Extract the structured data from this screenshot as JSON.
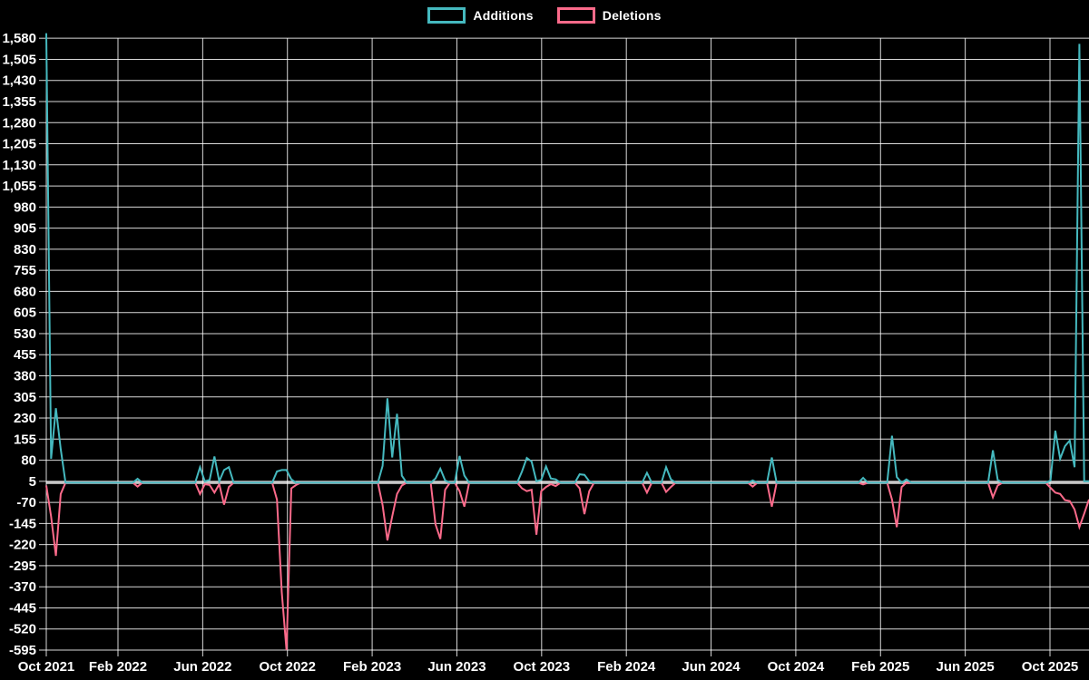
{
  "chart_data": {
    "type": "line",
    "title": "",
    "background_color": "#000000",
    "grid": "on",
    "grid_color": "rgba(255,255,255,0.85)",
    "zero_line_color": "rgba(255,255,255,0.75)",
    "text_color": "#ffffff",
    "legend_position": "top",
    "x_axis": {
      "unit": "weeks since Oct 2021 (weekly data points)",
      "total_weeks": 217,
      "tick_labels": [
        "Oct 2021",
        "Feb 2022",
        "Jun 2022",
        "Oct 2022",
        "Feb 2023",
        "Jun 2023",
        "Oct 2023",
        "Feb 2024",
        "Jun 2024",
        "Oct 2024",
        "Feb 2025",
        "Jun 2025",
        "Oct 2025"
      ]
    },
    "y_axis": {
      "min": -595,
      "max": 1580,
      "tick_step": 75,
      "ticks": [
        -595,
        -520,
        -445,
        -370,
        -295,
        -220,
        -145,
        -70,
        5,
        80,
        155,
        230,
        305,
        380,
        455,
        530,
        605,
        680,
        755,
        830,
        905,
        980,
        1055,
        1130,
        1205,
        1280,
        1355,
        1430,
        1505,
        1580
      ]
    },
    "series": [
      {
        "name": "Additions",
        "color": "#45b9bf",
        "points": [
          [
            0,
            1598
          ],
          [
            1,
            85
          ],
          [
            2,
            265
          ],
          [
            3,
            120
          ],
          [
            4,
            0
          ],
          [
            18,
            0
          ],
          [
            19,
            14
          ],
          [
            20,
            0
          ],
          [
            31,
            0
          ],
          [
            32,
            55
          ],
          [
            33,
            5
          ],
          [
            34,
            10
          ],
          [
            35,
            93
          ],
          [
            36,
            5
          ],
          [
            37,
            45
          ],
          [
            38,
            55
          ],
          [
            39,
            0
          ],
          [
            47,
            0
          ],
          [
            48,
            40
          ],
          [
            49,
            45
          ],
          [
            50,
            45
          ],
          [
            51,
            12
          ],
          [
            52,
            0
          ],
          [
            69,
            0
          ],
          [
            70,
            60
          ],
          [
            71,
            300
          ],
          [
            72,
            90
          ],
          [
            73,
            245
          ],
          [
            74,
            25
          ],
          [
            75,
            0
          ],
          [
            80,
            0
          ],
          [
            81,
            15
          ],
          [
            82,
            50
          ],
          [
            83,
            8
          ],
          [
            84,
            0
          ],
          [
            85,
            0
          ],
          [
            86,
            95
          ],
          [
            87,
            25
          ],
          [
            88,
            0
          ],
          [
            98,
            0
          ],
          [
            99,
            40
          ],
          [
            100,
            88
          ],
          [
            101,
            75
          ],
          [
            102,
            5
          ],
          [
            103,
            10
          ],
          [
            104,
            58
          ],
          [
            105,
            15
          ],
          [
            106,
            12
          ],
          [
            107,
            0
          ],
          [
            110,
            0
          ],
          [
            111,
            30
          ],
          [
            112,
            28
          ],
          [
            113,
            5
          ],
          [
            114,
            0
          ],
          [
            124,
            0
          ],
          [
            125,
            35
          ],
          [
            126,
            0
          ],
          [
            128,
            0
          ],
          [
            129,
            55
          ],
          [
            130,
            12
          ],
          [
            131,
            0
          ],
          [
            146,
            0
          ],
          [
            147,
            8
          ],
          [
            148,
            0
          ],
          [
            150,
            0
          ],
          [
            151,
            90
          ],
          [
            152,
            0
          ],
          [
            169,
            0
          ],
          [
            170,
            17
          ],
          [
            171,
            0
          ],
          [
            175,
            0
          ],
          [
            176,
            167
          ],
          [
            177,
            20
          ],
          [
            178,
            0
          ],
          [
            179,
            12
          ],
          [
            180,
            0
          ],
          [
            196,
            0
          ],
          [
            197,
            115
          ],
          [
            198,
            10
          ],
          [
            199,
            0
          ],
          [
            208,
            0
          ],
          [
            209,
            8
          ],
          [
            210,
            185
          ],
          [
            211,
            85
          ],
          [
            212,
            130
          ],
          [
            213,
            150
          ],
          [
            214,
            55
          ],
          [
            215,
            1560
          ],
          [
            216,
            5
          ],
          [
            217,
            5
          ]
        ]
      },
      {
        "name": "Deletions",
        "color": "#fb6a8a",
        "points": [
          [
            0,
            -10
          ],
          [
            1,
            -120
          ],
          [
            2,
            -260
          ],
          [
            3,
            -40
          ],
          [
            4,
            0
          ],
          [
            18,
            0
          ],
          [
            19,
            -14
          ],
          [
            20,
            0
          ],
          [
            31,
            0
          ],
          [
            32,
            -40
          ],
          [
            33,
            -5
          ],
          [
            34,
            -8
          ],
          [
            35,
            -35
          ],
          [
            36,
            -5
          ],
          [
            37,
            -78
          ],
          [
            38,
            -15
          ],
          [
            39,
            0
          ],
          [
            47,
            0
          ],
          [
            48,
            -60
          ],
          [
            49,
            -390
          ],
          [
            50,
            -595
          ],
          [
            51,
            -20
          ],
          [
            52,
            -8
          ],
          [
            53,
            0
          ],
          [
            69,
            0
          ],
          [
            70,
            -80
          ],
          [
            71,
            -205
          ],
          [
            72,
            -120
          ],
          [
            73,
            -40
          ],
          [
            74,
            -10
          ],
          [
            75,
            0
          ],
          [
            80,
            0
          ],
          [
            81,
            -148
          ],
          [
            82,
            -200
          ],
          [
            83,
            -25
          ],
          [
            84,
            0
          ],
          [
            85,
            0
          ],
          [
            86,
            -30
          ],
          [
            87,
            -85
          ],
          [
            88,
            0
          ],
          [
            98,
            0
          ],
          [
            99,
            -20
          ],
          [
            100,
            -30
          ],
          [
            101,
            -25
          ],
          [
            102,
            -185
          ],
          [
            103,
            -30
          ],
          [
            104,
            -15
          ],
          [
            105,
            -5
          ],
          [
            106,
            -12
          ],
          [
            107,
            0
          ],
          [
            110,
            0
          ],
          [
            111,
            -20
          ],
          [
            112,
            -112
          ],
          [
            113,
            -30
          ],
          [
            114,
            0
          ],
          [
            124,
            0
          ],
          [
            125,
            -35
          ],
          [
            126,
            0
          ],
          [
            128,
            0
          ],
          [
            129,
            -33
          ],
          [
            130,
            -15
          ],
          [
            131,
            0
          ],
          [
            146,
            0
          ],
          [
            147,
            -14
          ],
          [
            148,
            0
          ],
          [
            150,
            0
          ],
          [
            151,
            -85
          ],
          [
            152,
            0
          ],
          [
            169,
            0
          ],
          [
            170,
            -6
          ],
          [
            171,
            0
          ],
          [
            175,
            0
          ],
          [
            176,
            -60
          ],
          [
            177,
            -158
          ],
          [
            178,
            -15
          ],
          [
            179,
            0
          ],
          [
            196,
            0
          ],
          [
            197,
            -52
          ],
          [
            198,
            -10
          ],
          [
            199,
            0
          ],
          [
            208,
            0
          ],
          [
            209,
            -18
          ],
          [
            210,
            -35
          ],
          [
            211,
            -40
          ],
          [
            212,
            -62
          ],
          [
            213,
            -65
          ],
          [
            214,
            -95
          ],
          [
            215,
            -158
          ],
          [
            216,
            -110
          ],
          [
            217,
            -60
          ]
        ]
      }
    ]
  }
}
